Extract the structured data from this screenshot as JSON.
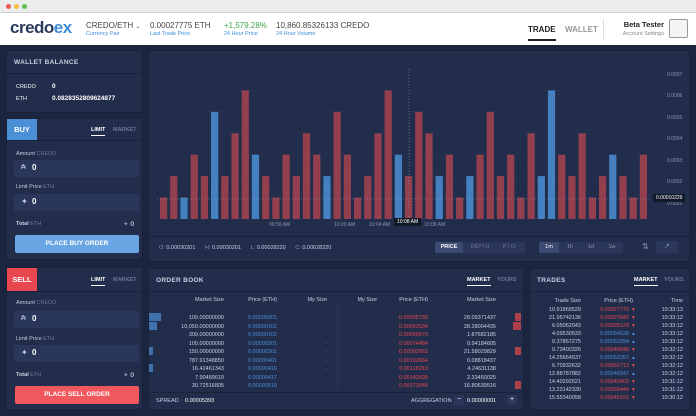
{
  "topbar": {
    "logo_main": "credo",
    "logo_accent": "ex",
    "pair": "CREDO/ETH",
    "pair_label": "Currency Pair",
    "last_price": "0.00027775 ETH",
    "last_price_label": "Last Trade Price",
    "change": "+1,579.28%",
    "change_label": "24 Hour Price",
    "volume": "10,860.85326133 CREDO",
    "volume_label": "24 Hour Volume",
    "nav": [
      "TRADE",
      "WALLET"
    ],
    "user_name": "Beta Tester",
    "user_sub": "Account Settings"
  },
  "wallet": {
    "title": "WALLET BALANCE",
    "rows": [
      {
        "currency": "CREDO",
        "amount": "0"
      },
      {
        "currency": "ETH",
        "amount": "0.0828352809624877"
      }
    ]
  },
  "buy": {
    "tab": "BUY",
    "types": [
      "LIMIT",
      "MARKET"
    ],
    "amount_label": "Amount",
    "amount_unit": "CREDO",
    "amount_value": "0",
    "price_label": "Limit Price",
    "price_unit": "ETH",
    "price_value": "0",
    "total_label": "Total",
    "total_unit": "ETH",
    "total_value": "0",
    "submit": "PLACE BUY ORDER"
  },
  "sell": {
    "tab": "SELL",
    "types": [
      "LIMIT",
      "MARKET"
    ],
    "amount_label": "Amount",
    "amount_unit": "CREDO",
    "amount_value": "0",
    "price_label": "Limit Price",
    "price_unit": "ETH",
    "price_value": "0",
    "total_label": "Total",
    "total_unit": "ETH",
    "total_value": "0",
    "submit": "PLACE SELL ORDER"
  },
  "chart": {
    "ohlc": {
      "o_label": "O:",
      "o": "0.00030201",
      "h_label": "H:",
      "h": "0.00030201",
      "l_label": "L:",
      "l": "0.00028220",
      "c_label": "C:",
      "c": "0.00028220"
    },
    "view_tabs": [
      "PRICE",
      "DEPTH",
      "P / O"
    ],
    "intervals": [
      "1m",
      "1h",
      "1d",
      "1w"
    ],
    "cursor_time": "10:08 AM",
    "cursor_price": "0.00010229",
    "x_ticks": [
      "09:56 AM",
      "10:00 AM",
      "10:04 AM",
      "10:08 AM"
    ],
    "y_ticks": [
      "0.0007",
      "0.0006",
      "0.0005",
      "0.0004",
      "0.0003",
      "0.0002",
      "0.0001"
    ]
  },
  "chart_data": {
    "type": "bar",
    "values": [
      1,
      2,
      1,
      3,
      2,
      5,
      2,
      4,
      6,
      3,
      2,
      1,
      3,
      2,
      4,
      3,
      2,
      5,
      3,
      1,
      2,
      4,
      6,
      3,
      2,
      5,
      4,
      2,
      3,
      1,
      2,
      3,
      5,
      2,
      3,
      1,
      4,
      2,
      6,
      3,
      2,
      4,
      1,
      2,
      3,
      2,
      1,
      3
    ],
    "ymax": 7
  },
  "orderbook": {
    "title": "ORDER BOOK",
    "tabs": [
      "MARKET",
      "YOURS"
    ],
    "headers": [
      "Market Size",
      "Price (ETH)",
      "My Size",
      "My Size",
      "Price (ETH)",
      "Market Size"
    ],
    "bids": [
      {
        "size": "100.00000000",
        "price": "0.00000001"
      },
      {
        "size": "10,050.00000000",
        "price": "0.00000101"
      },
      {
        "size": "300.00000000",
        "price": "0.00000102"
      },
      {
        "size": "100.00000000",
        "price": "0.00000201"
      },
      {
        "size": "150.00000000",
        "price": "0.00000301"
      },
      {
        "size": "787.91348850",
        "price": "0.00000401"
      },
      {
        "size": "16.42461343",
        "price": "0.00000416"
      },
      {
        "size": "7.90489610",
        "price": "0.00000417"
      },
      {
        "size": "30.72516805",
        "price": "0.00000510"
      }
    ],
    "asks": [
      {
        "price": "0.00035730",
        "size": "28.09371437"
      },
      {
        "price": "0.00052534",
        "size": "28.28004435"
      },
      {
        "price": "0.00059570",
        "size": "1.87682185"
      },
      {
        "price": "0.00074484",
        "size": "0.94184605"
      },
      {
        "price": "0.00092663",
        "size": "21.58029829"
      },
      {
        "price": "0.00102664",
        "size": "0.08818437"
      },
      {
        "price": "0.00118210",
        "size": "4.24631138"
      },
      {
        "price": "0.00142695",
        "size": "2.33450025"
      },
      {
        "price": "0.00173049",
        "size": "16.80639516"
      }
    ],
    "spread_label": "SPREAD",
    "spread_value": "0.00005393",
    "aggregation_label": "AGGREGATION",
    "aggregation_value": "0.00000001"
  },
  "trades": {
    "title": "TRADES",
    "tabs": [
      "MARKET",
      "YOURS"
    ],
    "headers": [
      "Trade Size",
      "Price (ETH)",
      "Time"
    ],
    "rows": [
      {
        "size": "10.91868529",
        "price": "0.00027775",
        "dir": "down",
        "time": "10:33:13"
      },
      {
        "size": "21.95742136",
        "price": "0.00027842",
        "dir": "down",
        "time": "10:33:12"
      },
      {
        "size": "6.05062043",
        "price": "0.00028129",
        "dir": "down",
        "time": "10:33:12"
      },
      {
        "size": "4.09530533",
        "price": "0.00054628",
        "dir": "up",
        "time": "10:33:12"
      },
      {
        "size": "0.37867275",
        "price": "0.00052894",
        "dir": "up",
        "time": "10:33:12"
      },
      {
        "size": "0.73400326",
        "price": "0.00049848",
        "dir": "down",
        "time": "10:32:12"
      },
      {
        "size": "14.25664537",
        "price": "0.00052267",
        "dir": "up",
        "time": "10:32:12"
      },
      {
        "size": "6.70932632",
        "price": "0.00050713",
        "dir": "down",
        "time": "10:32:12"
      },
      {
        "size": "12.88787882",
        "price": "0.00046947",
        "dir": "up",
        "time": "10:32:12"
      },
      {
        "size": "14.40292621",
        "price": "0.00049402",
        "dir": "down",
        "time": "10:31:12"
      },
      {
        "size": "13.23142330",
        "price": "0.00039444",
        "dir": "down",
        "time": "10:31:12"
      },
      {
        "size": "15.55340058",
        "price": "0.00045151",
        "dir": "down",
        "time": "10:30:12"
      }
    ]
  },
  "colors": {
    "up": "#4b8fd6",
    "down": "#e8474f",
    "accent": "#3d8bd9"
  }
}
